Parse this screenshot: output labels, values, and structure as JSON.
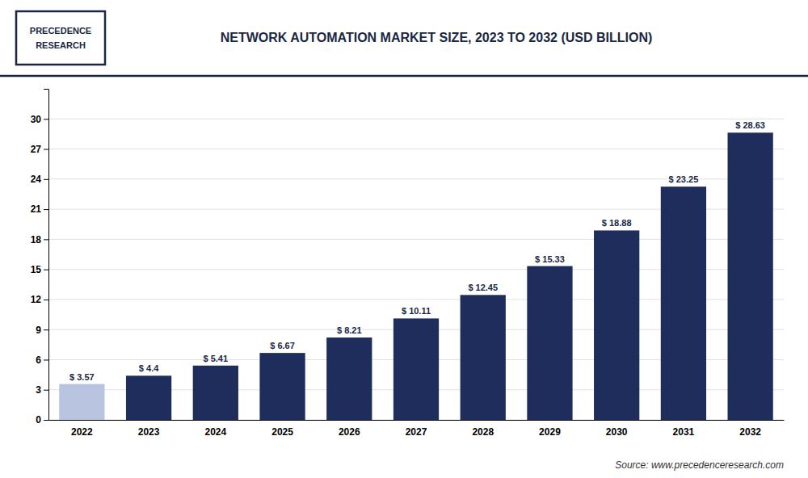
{
  "chart_data": {
    "type": "bar",
    "title": "NETWORK AUTOMATION MARKET SIZE, 2023 TO 2032 (USD BILLION)",
    "categories": [
      "2022",
      "2023",
      "2024",
      "2025",
      "2026",
      "2027",
      "2028",
      "2029",
      "2030",
      "2031",
      "2032"
    ],
    "values": [
      3.57,
      4.4,
      5.41,
      6.67,
      8.21,
      10.11,
      12.45,
      15.33,
      18.88,
      23.25,
      28.63
    ],
    "value_labels": [
      "$ 3.57",
      "$ 4.4",
      "$ 5.41",
      "$ 6.67",
      "$ 8.21",
      "$ 10.11",
      "$ 12.45",
      "$ 15.33",
      "$ 18.88",
      "$ 23.25",
      "$ 28.63"
    ],
    "colors": [
      "#b8c4e0",
      "#1e2d5c",
      "#1e2d5c",
      "#1e2d5c",
      "#1e2d5c",
      "#1e2d5c",
      "#1e2d5c",
      "#1e2d5c",
      "#1e2d5c",
      "#1e2d5c",
      "#1e2d5c"
    ],
    "ylim": [
      0,
      33
    ],
    "yticks": [
      0,
      3,
      6,
      9,
      12,
      15,
      18,
      21,
      24,
      27,
      30
    ],
    "grid": true,
    "data_labels": true,
    "annotations": [
      "Source: www.precedenceresearch.com",
      "PRECEDENCE",
      "RESEARCH"
    ]
  }
}
